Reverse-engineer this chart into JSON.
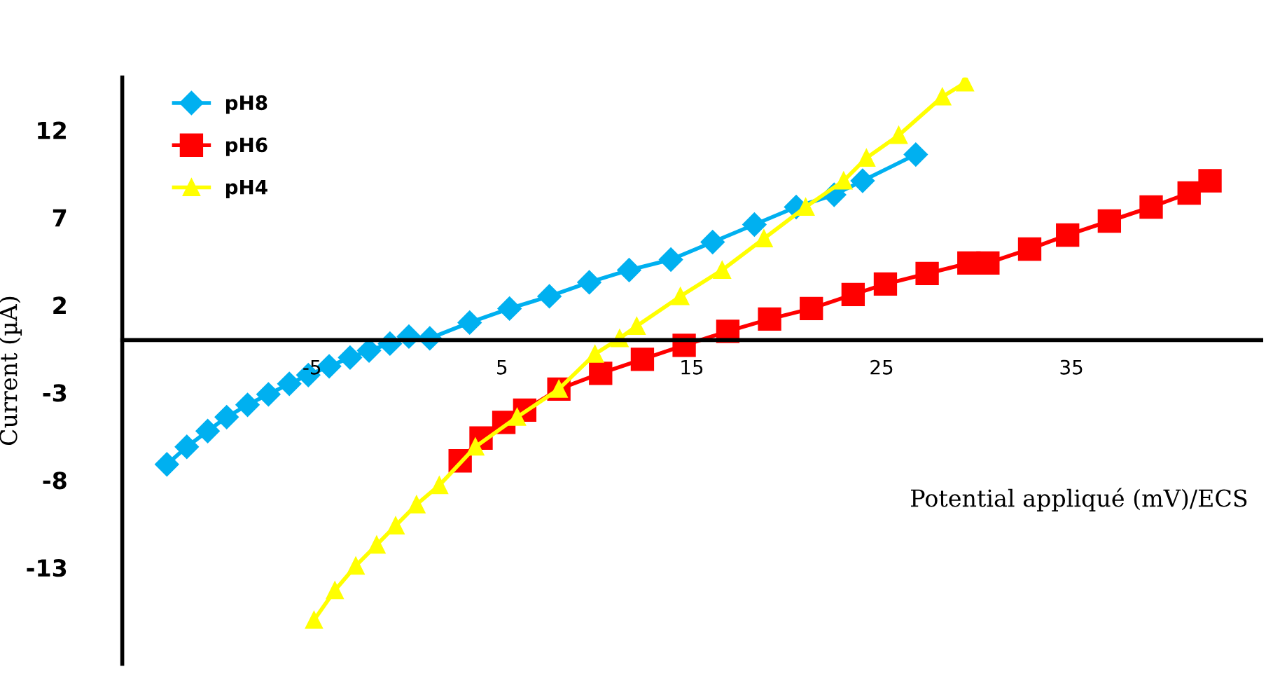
{
  "chart_data": {
    "type": "line",
    "xlabel": "Potential appliqué (mV)/ECS",
    "ylabel": "Current (µA)",
    "xlim": [
      -15,
      45
    ],
    "ylim": [
      -18.5,
      15
    ],
    "xticks": [
      -5,
      5,
      15,
      25,
      35
    ],
    "yticks": [
      12,
      7,
      2,
      -3,
      -8,
      -13
    ],
    "grid": false,
    "legend": "top left",
    "line_style": "solid",
    "series": [
      {
        "name": "pH8",
        "color": "#00b0f0",
        "marker": "diamond",
        "x": [
          -12.65,
          -11.6,
          -10.5,
          -9.5,
          -8.4,
          -7.3,
          -6.2,
          -5.2,
          -4.1,
          -3.0,
          -2.0,
          -0.9,
          0.1,
          1.2,
          3.3,
          5.4,
          7.5,
          9.6,
          11.7,
          13.9,
          16.1,
          18.3,
          20.5,
          22.5,
          24.0,
          26.8
        ],
        "values": [
          -7.1,
          -6.1,
          -5.2,
          -4.4,
          -3.7,
          -3.1,
          -2.5,
          -2.0,
          -1.5,
          -1.0,
          -0.6,
          -0.2,
          0.2,
          0.1,
          1.0,
          1.8,
          2.5,
          3.3,
          4.0,
          4.6,
          5.6,
          6.6,
          7.6,
          8.3,
          9.1,
          10.6
        ]
      },
      {
        "name": "pH6",
        "color": "#ff0000",
        "marker": "square",
        "x": [
          2.8,
          3.9,
          5.1,
          6.2,
          8.0,
          10.2,
          12.4,
          14.6,
          16.9,
          19.1,
          21.3,
          23.5,
          25.2,
          27.4,
          29.6,
          30.6,
          32.8,
          34.8,
          37.0,
          39.2,
          41.2,
          42.3
        ],
        "values": [
          -6.9,
          -5.6,
          -4.7,
          -4.0,
          -2.8,
          -1.9,
          -1.1,
          -0.3,
          0.5,
          1.2,
          1.8,
          2.6,
          3.2,
          3.8,
          4.4,
          4.4,
          5.2,
          6.0,
          6.8,
          7.6,
          8.4,
          9.1
        ]
      },
      {
        "name": "pH4",
        "color": "#ffff00",
        "marker": "triangle",
        "x": [
          -4.9,
          -3.8,
          -2.7,
          -1.6,
          -0.6,
          0.5,
          1.7,
          3.6,
          5.8,
          8.0,
          9.9,
          11.2,
          12.1,
          14.4,
          16.6,
          18.8,
          21.0,
          23.0,
          24.2,
          25.9,
          28.2,
          29.4
        ],
        "values": [
          -16.0,
          -14.3,
          -12.9,
          -11.7,
          -10.6,
          -9.4,
          -8.3,
          -6.1,
          -4.4,
          -2.8,
          -0.8,
          0.1,
          0.8,
          2.5,
          4.0,
          5.8,
          7.6,
          9.1,
          10.4,
          11.7,
          13.9,
          14.7
        ]
      }
    ]
  }
}
